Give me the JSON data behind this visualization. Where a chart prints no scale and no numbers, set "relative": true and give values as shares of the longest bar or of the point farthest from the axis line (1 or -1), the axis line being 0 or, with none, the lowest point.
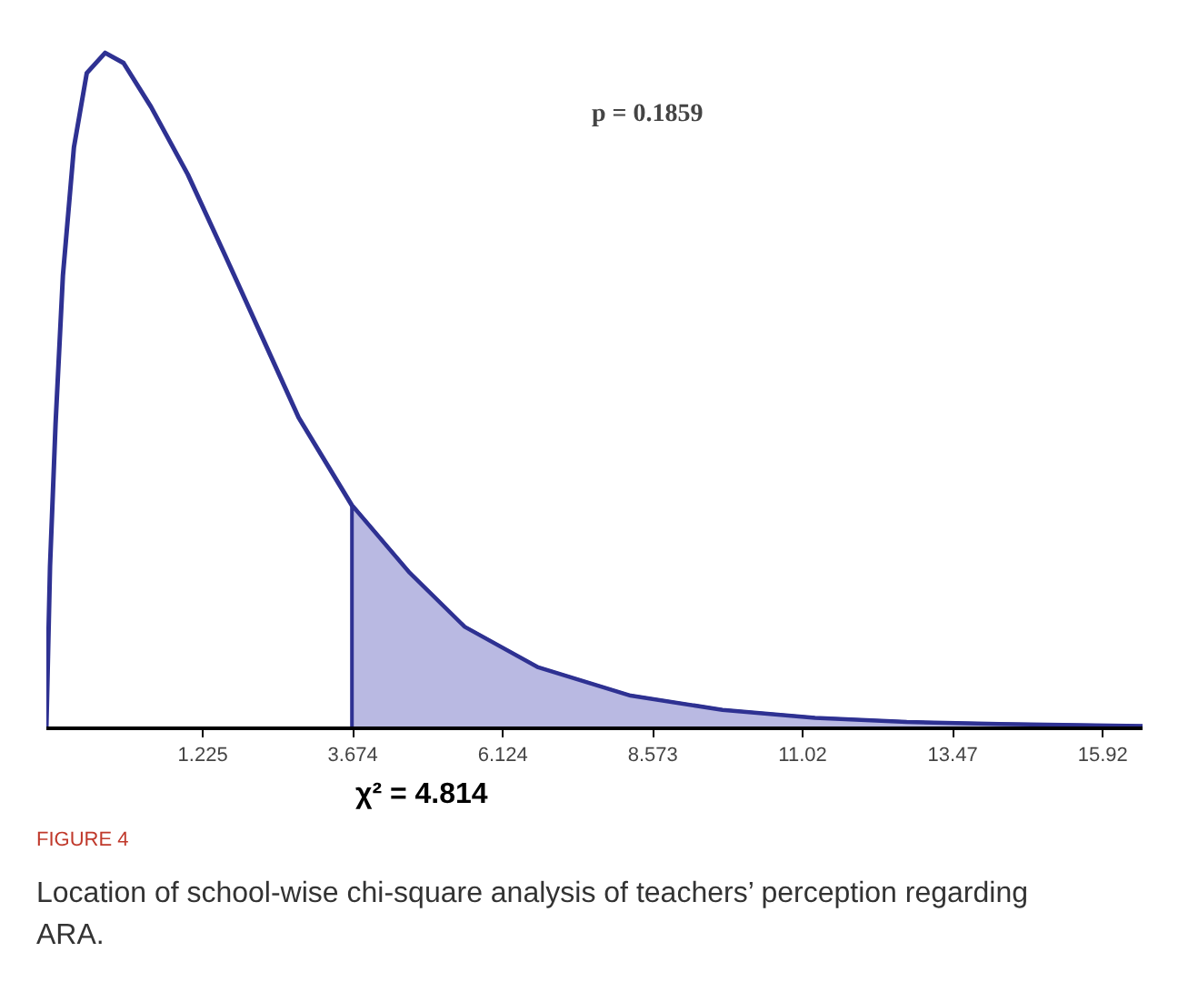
{
  "chart_data": {
    "type": "line",
    "relative": true,
    "x": [
      -1.33,
      -1.27,
      -1.18,
      -1.06,
      -0.88,
      -0.67,
      -0.37,
      -0.07,
      0.38,
      0.98,
      1.59,
      2.19,
      2.79,
      3.66,
      4.6,
      5.5,
      6.7,
      8.21,
      9.71,
      11.22,
      12.72,
      14.23,
      16.57
    ],
    "series": [
      {
        "color": "#2e3192",
        "values": [
          0,
          0.24,
          0.45,
          0.67,
          0.86,
          0.97,
          1.0,
          0.985,
          0.92,
          0.82,
          0.7,
          0.58,
          0.46,
          0.33,
          0.23,
          0.15,
          0.09,
          0.048,
          0.027,
          0.015,
          0.009,
          0.006,
          0.003
        ]
      },
      {
        "type": "area",
        "color": "#b9b9e2",
        "x": [
          3.66,
          4.6,
          5.5,
          6.7,
          8.21,
          9.71,
          11.22,
          12.72,
          14.23,
          16.57
        ],
        "values": [
          0.33,
          0.23,
          0.15,
          0.09,
          0.048,
          0.027,
          0.015,
          0.009,
          0.006,
          0.003
        ]
      }
    ],
    "xlim": [
      -1.33,
      16.57
    ],
    "xticks": [
      1.225,
      3.674,
      6.124,
      8.573,
      11.02,
      13.47,
      15.92
    ],
    "annotations": [
      "p = 0.1859",
      "χ² = 4.814",
      "FIGURE 4",
      "Location of school-wise chi-square analysis of teachers’ perception regarding ARA."
    ],
    "grid": false
  }
}
